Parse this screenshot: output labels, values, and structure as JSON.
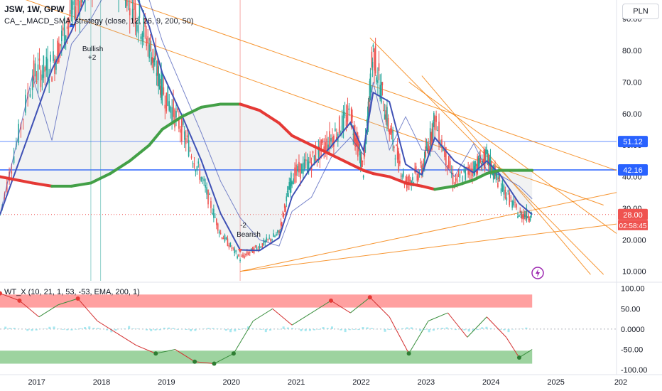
{
  "header": {
    "symbol": "JSW, 1W, GPW",
    "strategy": "CA_-_MACD_SMA_strategy (close, 12, 26, 9, 200, 50)",
    "oscillator": "WT_X (10, 21, 1, 53, -53, EMA, 200, 1)",
    "currency": "PLN"
  },
  "price_tags": {
    "tag1": "51.12",
    "tag2": "42.16",
    "last_price": "28.00",
    "countdown": "02:58:45"
  },
  "signals": {
    "bullish_count": "+2",
    "bullish_label": "Bullish",
    "bearish_count": "-2",
    "bearish_label": "Bearish"
  },
  "colors": {
    "up": "#26a69a",
    "down": "#ef5350",
    "sma_up": "#43a047",
    "sma_down": "#e53935",
    "macd_line": "#3f51b5",
    "trendline": "#f57c00",
    "hline": "#2962ff",
    "overbought_zone": "#ff5252",
    "oversold_zone": "#4caf50"
  },
  "chart_data": [
    {
      "type": "line",
      "name": "price",
      "x": [
        2016.5,
        2017.0,
        2017.3,
        2017.6,
        2017.9,
        2018.2,
        2018.5,
        2018.8,
        2019.0,
        2019.3,
        2019.6,
        2019.9,
        2020.2,
        2020.5,
        2020.8,
        2021.0,
        2021.3,
        2021.6,
        2021.9,
        2022.1,
        2022.25,
        2022.5,
        2022.75,
        2023.0,
        2023.2,
        2023.5,
        2023.8,
        2024.0,
        2024.2,
        2024.5,
        2024.7
      ],
      "y": [
        28,
        72,
        75,
        92,
        105,
        110,
        98,
        82,
        68,
        55,
        40,
        22,
        14,
        18,
        22,
        40,
        45,
        52,
        60,
        42,
        80,
        55,
        38,
        42,
        58,
        38,
        43,
        46,
        38,
        28,
        28
      ],
      "sma200": [
        40,
        38,
        37,
        37,
        38,
        41,
        45,
        50,
        55,
        59,
        62,
        63,
        63,
        61,
        57,
        53,
        50,
        47,
        44,
        42,
        41,
        40,
        38,
        37,
        36,
        37,
        39,
        41,
        42,
        42,
        42
      ],
      "y_ticks": [
        10.0,
        20.0,
        30.0,
        40.0,
        50.0,
        60.0,
        70.0,
        80.0,
        90.0
      ],
      "y_tick_labels": [
        "10.000",
        "20.000",
        "30.00",
        "40.00",
        "50.00",
        "60.00",
        "70.00",
        "80.00",
        "90.00"
      ],
      "hlines": [
        51.12,
        42.16
      ],
      "last_price": 28.0,
      "ylim": [
        7,
        96
      ],
      "xlim": [
        2016.5,
        2026.0
      ],
      "x_tick_labels": [
        "2017",
        "2018",
        "2019",
        "2020",
        "2021",
        "2022",
        "2023",
        "2024",
        "2025",
        "202"
      ]
    },
    {
      "type": "line",
      "name": "oscillator",
      "x": [
        2016.5,
        2016.8,
        2017.1,
        2017.4,
        2017.7,
        2018.0,
        2018.3,
        2018.6,
        2018.9,
        2019.2,
        2019.5,
        2019.8,
        2020.1,
        2020.4,
        2020.7,
        2021.0,
        2021.3,
        2021.6,
        2021.9,
        2022.2,
        2022.5,
        2022.8,
        2023.1,
        2023.4,
        2023.7,
        2024.0,
        2024.3,
        2024.5,
        2024.7
      ],
      "y": [
        88,
        70,
        30,
        60,
        75,
        20,
        -10,
        -40,
        -60,
        -50,
        -80,
        -85,
        -60,
        20,
        50,
        10,
        40,
        70,
        40,
        78,
        30,
        -60,
        20,
        40,
        -20,
        30,
        -20,
        -70,
        -50
      ],
      "y_ticks": [
        100,
        50,
        0,
        -50,
        -100
      ],
      "y_tick_labels": [
        "100.00",
        "50.00",
        "0.0000",
        "-50.00",
        "-100.00"
      ],
      "ylim": [
        -105,
        110
      ],
      "zones": [
        [
          53,
          85
        ],
        [
          -53,
          -85
        ]
      ]
    }
  ]
}
